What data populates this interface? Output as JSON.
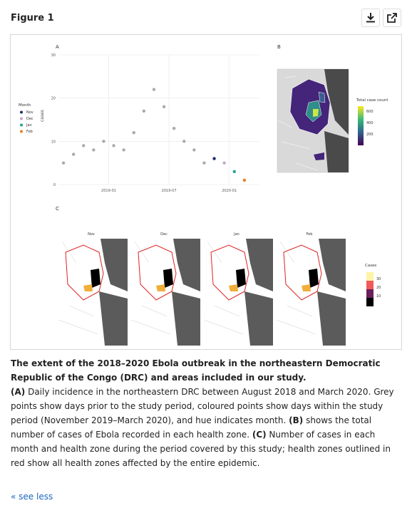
{
  "figure": {
    "title": "Figure 1",
    "panel_a_label": "A",
    "panel_b_label": "B",
    "panel_c_label": "C"
  },
  "toolbar": {
    "download_icon": "download-icon",
    "open_icon": "external-link-icon"
  },
  "chart_data": [
    {
      "type": "scatter",
      "panel": "A",
      "ylabel": "cases",
      "xlabel": "",
      "ylim": [
        0,
        30
      ],
      "yticks": [
        "0",
        "10",
        "20",
        "30"
      ],
      "xticks": [
        "2019-01",
        "2019-07",
        "2020-01"
      ],
      "grid": true,
      "legend": {
        "title": "Month",
        "entries": [
          "Nov",
          "Dec",
          "Jan",
          "Feb"
        ],
        "placement": "left"
      },
      "colors": {
        "prior": "#aaaaaa",
        "Nov": "#1e2f6e",
        "Dec": "#c8a5cc",
        "Jan": "#22a48f",
        "Feb": "#e8801e"
      },
      "x_range": [
        "2018-08",
        "2020-03"
      ],
      "series": [
        {
          "name": "",
          "color": "#aaaaaa",
          "x": [
            "2018-08",
            "2018-09",
            "2018-10",
            "2018-11",
            "2018-12",
            "2019-01",
            "2019-02",
            "2019-03",
            "2019-04",
            "2019-05",
            "2019-06",
            "2019-07",
            "2019-08",
            "2019-09",
            "2019-10"
          ],
          "y": [
            5,
            7,
            9,
            8,
            10,
            9,
            8,
            12,
            17,
            22,
            18,
            13,
            10,
            8,
            5
          ]
        },
        {
          "name": "Nov",
          "color": "#1e2f6e",
          "x": [
            "2019-11"
          ],
          "y": [
            6
          ]
        },
        {
          "name": "Dec",
          "color": "#c8a5cc",
          "x": [
            "2019-12"
          ],
          "y": [
            5
          ]
        },
        {
          "name": "Jan",
          "color": "#22a48f",
          "x": [
            "2020-01"
          ],
          "y": [
            3
          ]
        },
        {
          "name": "Feb",
          "color": "#e8801e",
          "x": [
            "2020-02"
          ],
          "y": [
            1
          ]
        }
      ]
    },
    {
      "type": "heatmap",
      "panel": "B",
      "legend": {
        "title": "Total case count",
        "ticks": [
          "600",
          "400",
          "200"
        ]
      }
    },
    {
      "type": "heatmap",
      "panel": "C",
      "facets": [
        "Nov",
        "Dec",
        "Jan",
        "Feb"
      ],
      "legend": {
        "title": "Cases",
        "ticks": [
          "30",
          "20",
          "10"
        ]
      }
    }
  ],
  "caption": {
    "title": "The extent of the 2018–2020 Ebola outbreak in the northeastern Democratic Republic of the Congo (DRC) and areas included in our study.",
    "a_label": "(A)",
    "a_text": " Daily incidence in the northeastern DRC between August 2018 and March 2020. Grey points show days prior to the study period, coloured points show days within the study period (November 2019–March 2020), and hue indicates month. ",
    "b_label": "(B)",
    "b_text": " shows the total number of cases of Ebola recorded in each health zone. ",
    "c_label": "(C)",
    "c_text": " Number of cases in each month and health zone during the period covered by this study; health zones outlined in red show all health zones affected by the entire epidemic."
  },
  "see_less": "« see less"
}
